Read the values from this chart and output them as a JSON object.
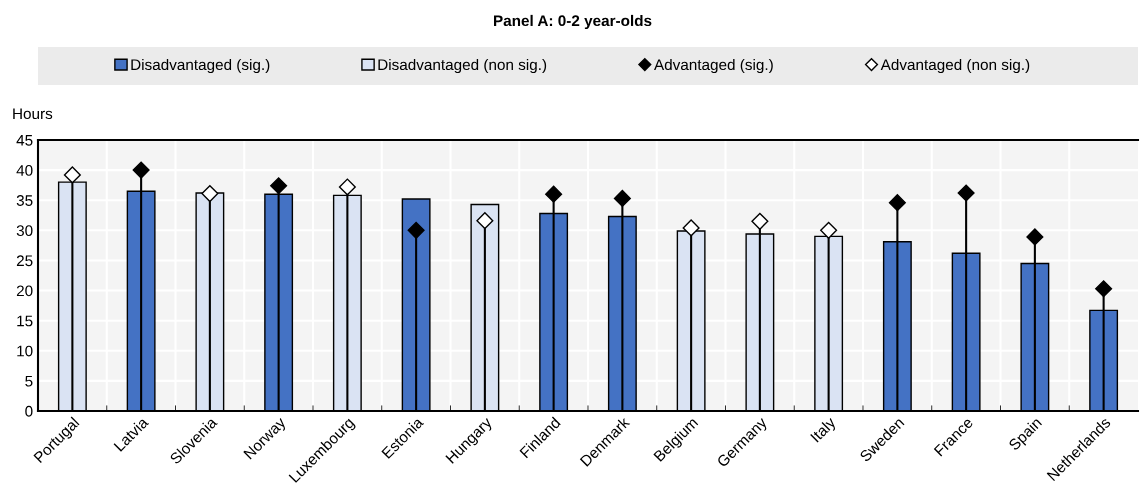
{
  "chart_data": {
    "type": "bar",
    "title": "Panel A: 0-2 year-olds",
    "ylabel": "Hours",
    "categories": [
      "Portugal",
      "Latvia",
      "Slovenia",
      "Norway",
      "Luxembourg",
      "Estonia",
      "Hungary",
      "Finland",
      "Denmark",
      "Belgium",
      "Germany",
      "Italy",
      "Sweden",
      "France",
      "Spain",
      "Netherlands"
    ],
    "series": [
      {
        "name": "Disadvantaged (sig.)",
        "color": "#4472c4",
        "values": [
          null,
          36.5,
          null,
          36.0,
          null,
          35.2,
          null,
          32.8,
          32.3,
          null,
          null,
          null,
          28.1,
          26.2,
          24.5,
          16.7
        ]
      },
      {
        "name": "Disadvantaged (non sig.)",
        "color": "#dae3f3",
        "values": [
          38.0,
          null,
          36.2,
          null,
          35.8,
          null,
          34.3,
          null,
          null,
          29.9,
          29.4,
          29.0,
          null,
          null,
          null,
          null
        ]
      },
      {
        "name": "Advantaged (sig.)",
        "type": "lollipop",
        "color": "#000000",
        "values": [
          null,
          40.0,
          null,
          37.4,
          null,
          30.0,
          null,
          36.0,
          35.3,
          null,
          null,
          null,
          34.6,
          36.2,
          28.9,
          20.3
        ]
      },
      {
        "name": "Advantaged (non sig.)",
        "type": "lollipop",
        "color": "#ffffff",
        "values": [
          39.2,
          null,
          36.1,
          null,
          37.2,
          null,
          31.6,
          null,
          null,
          30.4,
          31.5,
          30.0,
          null,
          null,
          null,
          null
        ]
      }
    ],
    "ylim": [
      0,
      45
    ],
    "yticks": [
      0,
      5,
      10,
      15,
      20,
      25,
      30,
      35,
      40,
      45
    ],
    "grid": true,
    "legend": "top",
    "marker": "diamond"
  }
}
